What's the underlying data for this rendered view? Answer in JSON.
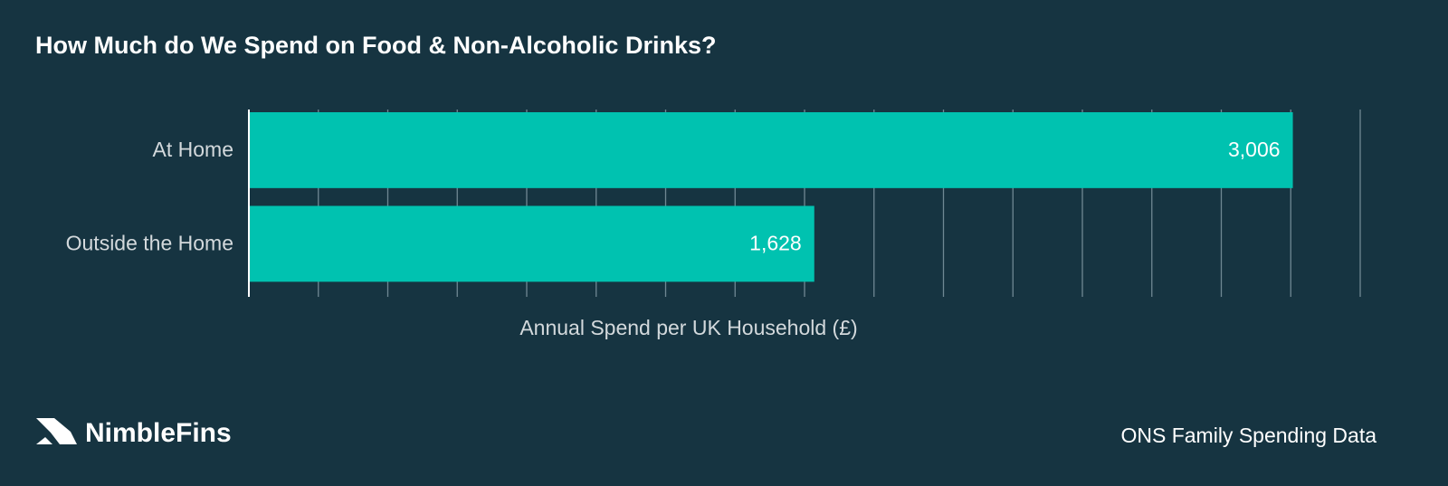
{
  "chart_data": {
    "type": "barh",
    "title": "How Much do We Spend on Food & Non-Alcoholic Drinks?",
    "categories": [
      "At Home",
      "Outside the Home"
    ],
    "values": [
      3006,
      1628
    ],
    "value_labels": [
      "3,006",
      "1,628"
    ],
    "color": "#00c2b0",
    "xlabel": "Annual Spend per UK Household (£)",
    "xlim": [
      0,
      3200
    ],
    "xticks": [
      0,
      200,
      400,
      600,
      800,
      1000,
      1200,
      1400,
      1600,
      1800,
      2000,
      2200,
      2400,
      2600,
      2800,
      3000,
      3200
    ],
    "grid": true
  },
  "brand": "NimbleFins",
  "source": "ONS Family Spending Data"
}
